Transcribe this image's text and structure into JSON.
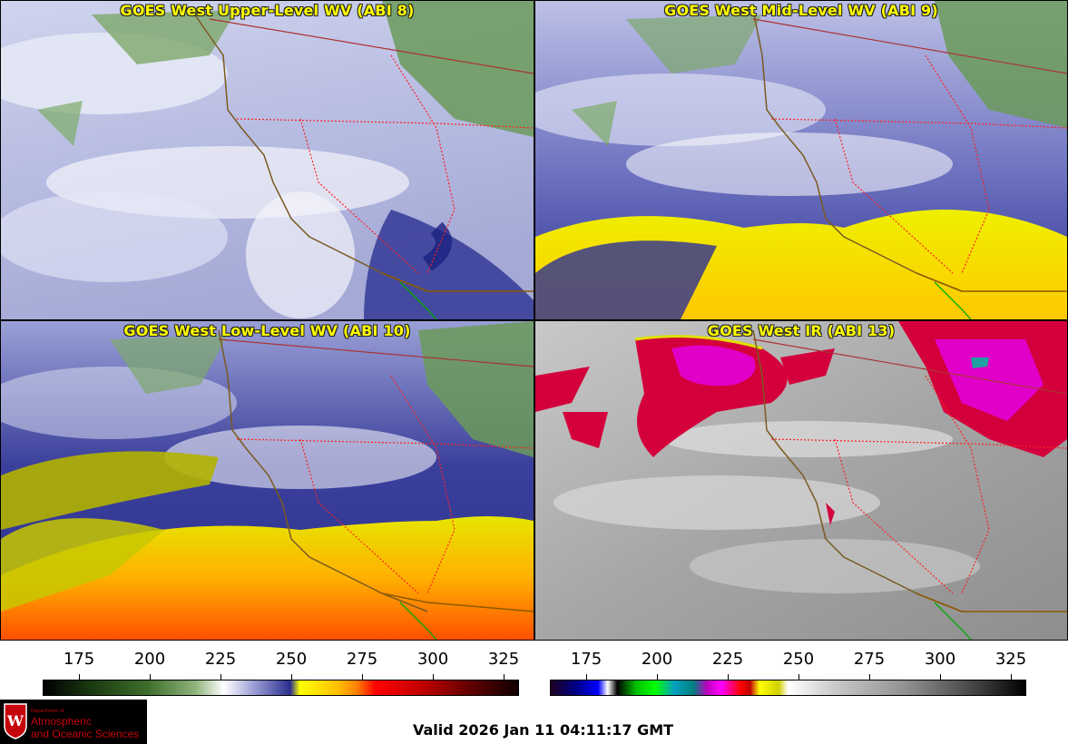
{
  "panels": [
    {
      "title": "GOES West Upper-Level WV (ABI 8)"
    },
    {
      "title": "GOES West Mid-Level WV (ABI 9)"
    },
    {
      "title": "GOES West Low-Level WV (ABI 10)"
    },
    {
      "title": "GOES West IR (ABI 13)"
    }
  ],
  "colorbars": {
    "wv": {
      "ticks": [
        "175",
        "200",
        "225",
        "250",
        "275",
        "300",
        "325"
      ]
    },
    "ir": {
      "ticks": [
        "175",
        "200",
        "225",
        "250",
        "275",
        "300",
        "325"
      ]
    }
  },
  "logo": {
    "crest_letter": "W",
    "dept_line": "Department of",
    "name_line1": "Atmospheric",
    "name_line2": "and Oceanic Sciences"
  },
  "footer": {
    "valid_text": "Valid 2026 Jan 11 04:11:17 GMT"
  },
  "colors": {
    "title": "#ffff00",
    "state_borders": "#ff0000",
    "coastline": "#8b5a00",
    "mexico_border": "#00aa00"
  }
}
